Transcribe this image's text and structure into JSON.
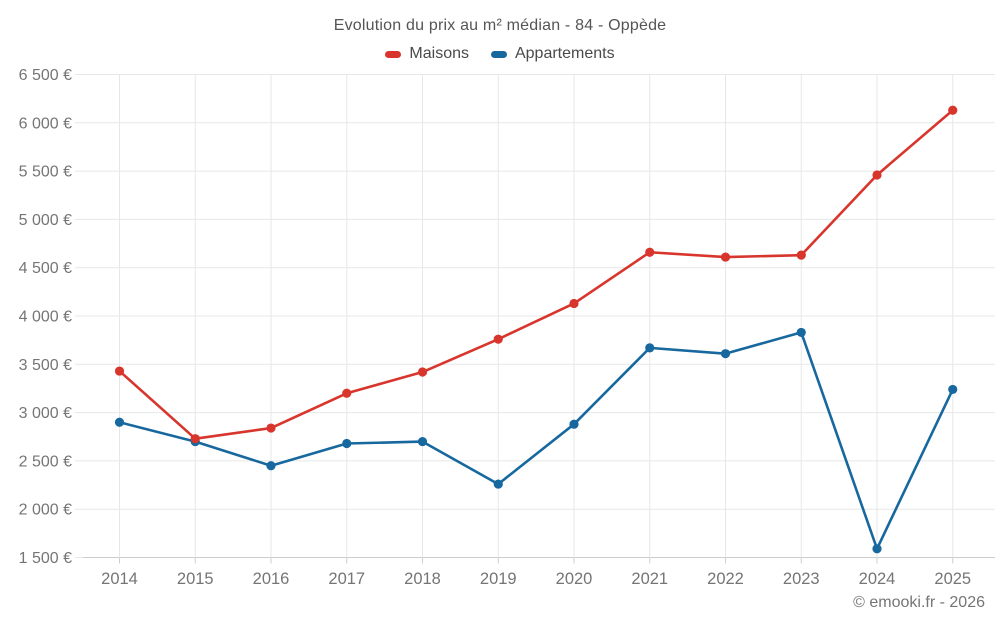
{
  "title": "Evolution du prix au m² médian - 84 - Oppède",
  "footer": "© emooki.fr - 2026",
  "colors": {
    "maisons": "#d8352d",
    "appartements": "#17689e",
    "grid": "#e7e7e7",
    "axis": "#cccccc",
    "tick_label": "#757575",
    "title": "#555555"
  },
  "chart_data": {
    "type": "line",
    "title": "Evolution du prix au m² médian - 84 - Oppède",
    "categories": [
      "2014",
      "2015",
      "2016",
      "2017",
      "2018",
      "2019",
      "2020",
      "2021",
      "2022",
      "2023",
      "2024",
      "2025"
    ],
    "series": [
      {
        "name": "Maisons",
        "color": "#d8352d",
        "values": [
          3430,
          2730,
          2840,
          3200,
          3420,
          3760,
          4130,
          4660,
          4610,
          4630,
          5460,
          6130
        ]
      },
      {
        "name": "Appartements",
        "color": "#17689e",
        "values": [
          2900,
          2700,
          2450,
          2680,
          2700,
          2260,
          2880,
          3670,
          3610,
          3830,
          1590,
          3240
        ]
      }
    ],
    "xlabel": "",
    "ylabel": "",
    "ylim": [
      1500,
      6500
    ],
    "ytick_step": 500,
    "ytick_labels": [
      "1 500 €",
      "2 000 €",
      "2 500 €",
      "3 000 €",
      "3 500 €",
      "4 000 €",
      "4 500 €",
      "5 000 €",
      "5 500 €",
      "6 000 €",
      "6 500 €"
    ],
    "currency_suffix": " €",
    "grid": true,
    "legend_position": "top",
    "marker": "circle"
  }
}
